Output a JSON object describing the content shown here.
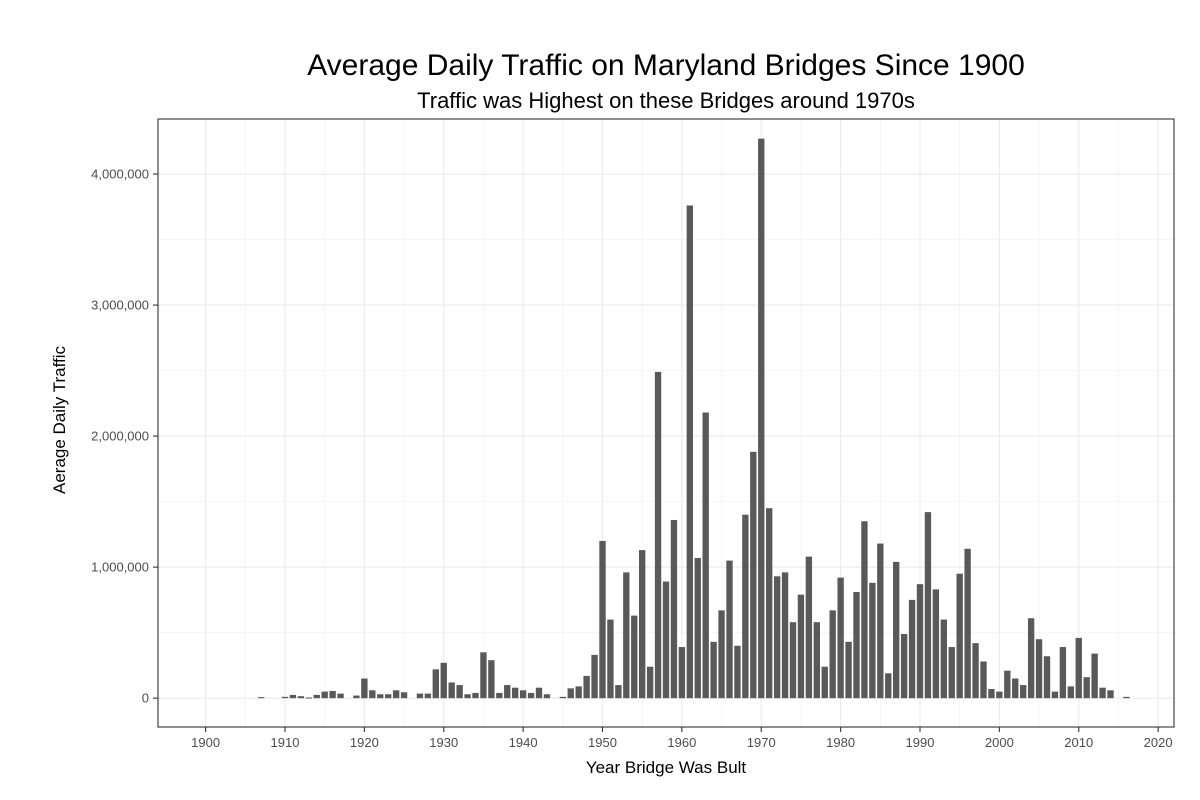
{
  "chart_data": {
    "type": "bar",
    "title": "Average Daily Traffic on Maryland Bridges Since 1900",
    "subtitle": "Traffic was Highest on these Bridges around 1970s",
    "xlabel": "Year Bridge Was Bult",
    "ylabel": "Aerage Daily Traffic",
    "xlim": [
      1894,
      2022
    ],
    "ylim": [
      -220000,
      4420000
    ],
    "x_ticks": [
      1900,
      1910,
      1920,
      1930,
      1940,
      1950,
      1960,
      1970,
      1980,
      1990,
      2000,
      2010,
      2020
    ],
    "x_tick_labels": [
      "1900",
      "1910",
      "1920",
      "1930",
      "1940",
      "1950",
      "1960",
      "1970",
      "1980",
      "1990",
      "2000",
      "2010",
      "2020"
    ],
    "y_ticks": [
      0,
      1000000,
      2000000,
      3000000,
      4000000
    ],
    "y_tick_labels": [
      "0",
      "1,000,000",
      "2,000,000",
      "3,000,000",
      "4,000,000"
    ],
    "grid": true,
    "bar_color": "#595959",
    "x": [
      1907,
      1910,
      1911,
      1912,
      1913,
      1914,
      1915,
      1916,
      1917,
      1919,
      1920,
      1921,
      1922,
      1923,
      1924,
      1925,
      1927,
      1928,
      1929,
      1930,
      1931,
      1932,
      1933,
      1934,
      1935,
      1936,
      1937,
      1938,
      1939,
      1940,
      1941,
      1942,
      1943,
      1945,
      1946,
      1947,
      1948,
      1949,
      1950,
      1951,
      1952,
      1953,
      1954,
      1955,
      1956,
      1957,
      1958,
      1959,
      1960,
      1961,
      1962,
      1963,
      1964,
      1965,
      1966,
      1967,
      1968,
      1969,
      1970,
      1971,
      1972,
      1973,
      1974,
      1975,
      1976,
      1977,
      1978,
      1979,
      1980,
      1981,
      1982,
      1983,
      1984,
      1985,
      1986,
      1987,
      1988,
      1989,
      1990,
      1991,
      1992,
      1993,
      1994,
      1995,
      1996,
      1997,
      1998,
      1999,
      2000,
      2001,
      2002,
      2003,
      2004,
      2005,
      2006,
      2007,
      2008,
      2009,
      2010,
      2011,
      2012,
      2013,
      2014,
      2016
    ],
    "values": [
      8000,
      10000,
      25000,
      15000,
      5000,
      25000,
      50000,
      55000,
      35000,
      20000,
      150000,
      60000,
      30000,
      30000,
      60000,
      45000,
      35000,
      35000,
      220000,
      270000,
      120000,
      100000,
      30000,
      40000,
      350000,
      290000,
      40000,
      100000,
      80000,
      60000,
      40000,
      80000,
      30000,
      10000,
      75000,
      90000,
      170000,
      330000,
      1200000,
      600000,
      100000,
      960000,
      630000,
      1130000,
      240000,
      2490000,
      890000,
      1360000,
      390000,
      3760000,
      1070000,
      2180000,
      430000,
      670000,
      1050000,
      400000,
      1400000,
      1880000,
      4270000,
      1450000,
      930000,
      960000,
      580000,
      790000,
      1080000,
      580000,
      240000,
      670000,
      920000,
      430000,
      810000,
      1350000,
      880000,
      1180000,
      190000,
      1040000,
      490000,
      750000,
      870000,
      1420000,
      830000,
      600000,
      390000,
      950000,
      1140000,
      420000,
      280000,
      70000,
      50000,
      210000,
      150000,
      100000,
      610000,
      450000,
      320000,
      50000,
      390000,
      90000,
      460000,
      160000,
      340000,
      80000,
      60000,
      10000
    ]
  }
}
